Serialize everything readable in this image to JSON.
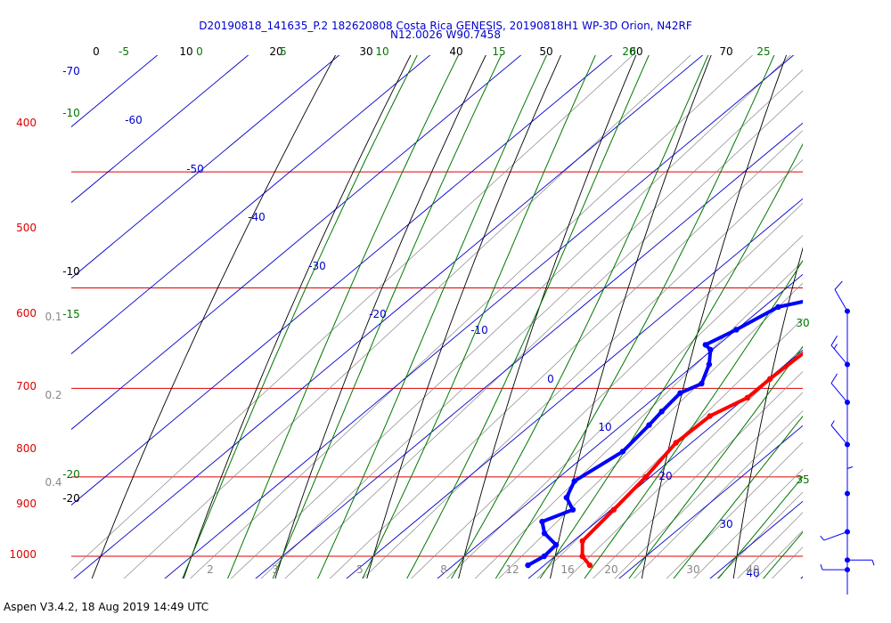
{
  "header": {
    "title_line1": "D20190818_141635_P.2 182620808 Costa Rica GENESIS, 20190818H1 WP-3D Orion, N42RF",
    "title_line2": "N12.0026 W90.7458"
  },
  "footer": {
    "text": "Aspen V3.4.2, 18 Aug 2019  14:49 UTC"
  },
  "colors": {
    "isobar": "#dd0000",
    "isotherm": "#0000cc",
    "dry_adiabat": "#000000",
    "moist_adiabat": "#007700",
    "mixing_ratio": "#888888",
    "temperature_trace": "#ff0000",
    "dewpoint_trace": "#0000ff"
  },
  "chart_data": {
    "type": "skew-t",
    "pressure_levels_hPa": [
      "400",
      "500",
      "600",
      "700",
      "800",
      "900",
      "1000"
    ],
    "isotherm_labels": [
      "-70",
      "-60",
      "-50",
      "-40",
      "-30",
      "-20",
      "-10",
      "0",
      "10",
      "20",
      "30",
      "40"
    ],
    "dry_adiabat_top_labels": [
      "0",
      "10",
      "20",
      "30",
      "40",
      "50",
      "60",
      "70"
    ],
    "dry_adiabat_left_labels": [
      "-10",
      "-20"
    ],
    "moist_adiabat_top_labels": [
      "-5",
      "0",
      "5",
      "10",
      "15",
      "20",
      "25"
    ],
    "moist_adiabat_left_labels": [
      "-10",
      "-15",
      "-20"
    ],
    "moist_adiabat_right_labels": [
      "30",
      "35"
    ],
    "mixing_ratio_left_labels": [
      "0.1",
      "0.2",
      "0.4"
    ],
    "mixing_ratio_bottom_labels": [
      "2",
      "3",
      "5",
      "8",
      "12",
      "16",
      "20",
      "30",
      "40"
    ],
    "temperature": [
      {
        "p": 702,
        "t": 10.0
      },
      {
        "p": 710,
        "t": 10.5
      },
      {
        "p": 730,
        "t": 10.8
      },
      {
        "p": 760,
        "t": 10.5
      },
      {
        "p": 790,
        "t": 10.2
      },
      {
        "p": 810,
        "t": 10.2
      },
      {
        "p": 830,
        "t": 8.5
      },
      {
        "p": 860,
        "t": 8.3
      },
      {
        "p": 900,
        "t": 9.5
      },
      {
        "p": 940,
        "t": 10.3
      },
      {
        "p": 980,
        "t": 11.0
      },
      {
        "p": 1000,
        "t": 13.0
      },
      {
        "p": 1012,
        "t": 15.0
      }
    ],
    "dewpoint": [
      {
        "p": 703,
        "t": 5.3
      },
      {
        "p": 708,
        "t": 5.6
      },
      {
        "p": 718,
        "t": 1.6
      },
      {
        "p": 740,
        "t": 0.0
      },
      {
        "p": 755,
        "t": -1.4
      },
      {
        "p": 760,
        "t": -0.2
      },
      {
        "p": 775,
        "t": 1.6
      },
      {
        "p": 795,
        "t": 3.3
      },
      {
        "p": 805,
        "t": 2.2
      },
      {
        "p": 825,
        "t": 2.6
      },
      {
        "p": 840,
        "t": 3.0
      },
      {
        "p": 870,
        "t": 3.6
      },
      {
        "p": 905,
        "t": 2.2
      },
      {
        "p": 925,
        "t": 3.5
      },
      {
        "p": 940,
        "t": 5.8
      },
      {
        "p": 955,
        "t": 4.0
      },
      {
        "p": 970,
        "t": 5.8
      },
      {
        "p": 985,
        "t": 8.6
      },
      {
        "p": 1000,
        "t": 8.8
      },
      {
        "p": 1012,
        "t": 8.2
      }
    ],
    "wind_barbs": [
      {
        "p": 722,
        "dir": 330,
        "kt": 10
      },
      {
        "p": 775,
        "dir": 320,
        "kt": 15
      },
      {
        "p": 815,
        "dir": 320,
        "kt": 10
      },
      {
        "p": 862,
        "dir": 320,
        "kt": 5
      },
      {
        "p": 920,
        "dir": 0,
        "kt": 5
      },
      {
        "p": 968,
        "dir": 250,
        "kt": 5
      },
      {
        "p": 1005,
        "dir": 90,
        "kt": 5
      },
      {
        "p": 1018,
        "dir": 270,
        "kt": 5
      }
    ]
  }
}
